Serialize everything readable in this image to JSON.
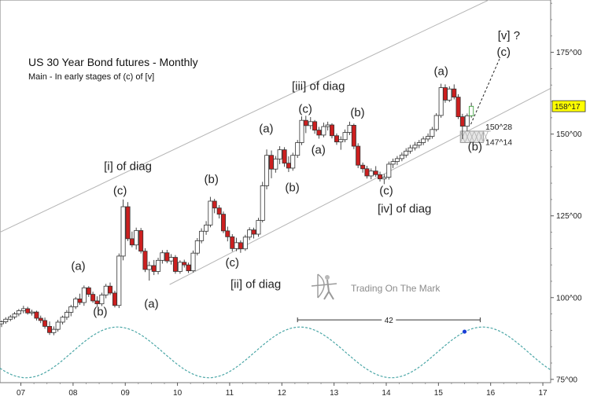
{
  "chart_data": {
    "type": "candlestick",
    "title": "US 30 Year Bond futures - Monthly",
    "subtitle": "Main - In early stages of (c) of [v]",
    "watermark": "Trading On The Mark",
    "x_axis": {
      "ticks": [
        "07",
        "08",
        "09",
        "10",
        "11",
        "12",
        "13",
        "14",
        "15",
        "16",
        "17"
      ],
      "range": [
        2006.6,
        2017.15
      ]
    },
    "y_axis": {
      "scale": "price",
      "ticks": [
        {
          "label": "75^00",
          "value": 75
        },
        {
          "label": "100^00",
          "value": 100
        },
        {
          "label": "125^00",
          "value": 125
        },
        {
          "label": "150^00",
          "value": 150
        },
        {
          "label": "175^00",
          "value": 175
        }
      ],
      "range": [
        74,
        191
      ]
    },
    "last_price": {
      "label": "158^17",
      "value": 158.53
    },
    "support_levels": [
      {
        "label": "150^28",
        "value": 150.9
      },
      {
        "label": "147^14",
        "value": 147.4
      }
    ],
    "channel_lines": [
      {
        "x1": 2006.6,
        "y1": 120,
        "x2": 2017.15,
        "y2": 200
      },
      {
        "x1": 2009.85,
        "y1": 104,
        "x2": 2017.15,
        "y2": 164
      }
    ],
    "projection": {
      "from": {
        "x": 2015.62,
        "y": 153
      },
      "to": {
        "x": 2016.17,
        "y": 173
      }
    },
    "cycle": {
      "period_label": "42",
      "span": [
        2012.3,
        2015.8
      ],
      "peak_marker": {
        "x": 2015.5,
        "y": 89.6
      },
      "min": 75.5,
      "max": 91,
      "phase_peak": 2008.85,
      "period_years": 3.5
    },
    "annotations": [
      {
        "text": "[i] of diag",
        "x": 2009.05,
        "y": 139
      },
      {
        "text": "(c)",
        "x": 2008.9,
        "y": 131.5
      },
      {
        "text": "(a)",
        "x": 2008.1,
        "y": 108.5
      },
      {
        "text": "(b)",
        "x": 2008.52,
        "y": 94.5
      },
      {
        "text": "(a)",
        "x": 2009.5,
        "y": 97
      },
      {
        "text": "(b)",
        "x": 2010.65,
        "y": 135
      },
      {
        "text": "(c)",
        "x": 2011.05,
        "y": 109.5
      },
      {
        "text": "[ii] of diag",
        "x": 2011.5,
        "y": 103
      },
      {
        "text": "(a)",
        "x": 2011.7,
        "y": 150.5
      },
      {
        "text": "(b)",
        "x": 2012.2,
        "y": 132.5
      },
      {
        "text": "(c)",
        "x": 2012.45,
        "y": 156.5
      },
      {
        "text": "[iii] of diag",
        "x": 2012.7,
        "y": 163.5
      },
      {
        "text": "(a)",
        "x": 2012.7,
        "y": 144
      },
      {
        "text": "(b)",
        "x": 2013.45,
        "y": 155.5
      },
      {
        "text": "(c)",
        "x": 2014,
        "y": 131.5
      },
      {
        "text": "[iv] of diag",
        "x": 2014.35,
        "y": 126
      },
      {
        "text": "(a)",
        "x": 2015.05,
        "y": 168
      },
      {
        "text": "(b)",
        "x": 2015.7,
        "y": 145
      },
      {
        "text": "[v] ?",
        "x": 2016.35,
        "y": 179
      },
      {
        "text": "(c)",
        "x": 2016.25,
        "y": 174
      }
    ],
    "candles": [
      [
        2006.63,
        92,
        93,
        91,
        92.6
      ],
      [
        2006.71,
        92.6,
        94,
        92,
        93.4
      ],
      [
        2006.8,
        93.4,
        94.7,
        92.8,
        94.1
      ],
      [
        2006.88,
        94.1,
        95.6,
        93.4,
        95
      ],
      [
        2006.96,
        95,
        96.5,
        94.3,
        96
      ],
      [
        2007.05,
        96,
        97.5,
        95.2,
        96.6
      ],
      [
        2007.13,
        96.6,
        97.2,
        94.8,
        95.3
      ],
      [
        2007.21,
        95.3,
        96.3,
        94.5,
        95.6
      ],
      [
        2007.3,
        95.6,
        96,
        93,
        93.7
      ],
      [
        2007.38,
        93.7,
        94.5,
        92.2,
        93
      ],
      [
        2007.46,
        93,
        93.9,
        90.5,
        91.2
      ],
      [
        2007.55,
        91.2,
        92.7,
        88.6,
        89.3
      ],
      [
        2007.63,
        89.3,
        91.2,
        88.5,
        90.3
      ],
      [
        2007.71,
        90.3,
        93.2,
        89.6,
        92.5
      ],
      [
        2007.8,
        92.5,
        94.5,
        91.8,
        94
      ],
      [
        2007.88,
        94,
        96.2,
        93.2,
        95.5
      ],
      [
        2007.96,
        95.5,
        97.8,
        94.3,
        97.2
      ],
      [
        2008.05,
        97.2,
        100.2,
        96.5,
        99.6
      ],
      [
        2008.13,
        99.6,
        101.2,
        97.8,
        98.5
      ],
      [
        2008.21,
        98.5,
        103.7,
        97.5,
        103
      ],
      [
        2008.3,
        103,
        103.5,
        100.2,
        101
      ],
      [
        2008.38,
        101,
        101.8,
        98.4,
        99
      ],
      [
        2008.46,
        99,
        100.4,
        97.2,
        98.1
      ],
      [
        2008.55,
        98.1,
        101.5,
        97.4,
        100.8
      ],
      [
        2008.63,
        100.8,
        104.2,
        99.8,
        103.5
      ],
      [
        2008.71,
        103.5,
        104.6,
        100.8,
        101.4
      ],
      [
        2008.8,
        101.4,
        102.1,
        97,
        97.6
      ],
      [
        2008.88,
        97.6,
        113.5,
        96.8,
        112.7
      ],
      [
        2008.96,
        112.7,
        130,
        111.4,
        127.8
      ],
      [
        2009.05,
        127.8,
        129.2,
        117.3,
        118
      ],
      [
        2009.13,
        118,
        120.2,
        115.4,
        116.1
      ],
      [
        2009.21,
        116.1,
        121.4,
        114.7,
        120.5
      ],
      [
        2009.3,
        120.5,
        121.3,
        113.5,
        114.2
      ],
      [
        2009.38,
        114.2,
        115.1,
        107.8,
        108.6
      ],
      [
        2009.46,
        108.6,
        111,
        105.2,
        109.8
      ],
      [
        2009.55,
        109.8,
        111.5,
        106.9,
        108
      ],
      [
        2009.63,
        108,
        112.2,
        107.1,
        111.4
      ],
      [
        2009.71,
        111.4,
        114.5,
        110.4,
        113.7
      ],
      [
        2009.8,
        113.7,
        114.6,
        110.5,
        111.2
      ],
      [
        2009.88,
        111.2,
        113.3,
        110.1,
        112.3
      ],
      [
        2009.96,
        112.3,
        113,
        107.3,
        108
      ],
      [
        2010.05,
        108,
        111.4,
        107.3,
        110.8
      ],
      [
        2010.13,
        110.8,
        111.6,
        109.2,
        110
      ],
      [
        2010.21,
        110,
        110.7,
        107.5,
        108.2
      ],
      [
        2010.3,
        108.2,
        114.4,
        107.7,
        113.6
      ],
      [
        2010.38,
        113.6,
        118.2,
        112.9,
        117.4
      ],
      [
        2010.46,
        117.4,
        121.2,
        116.6,
        120.3
      ],
      [
        2010.55,
        120.3,
        123.4,
        119.2,
        122.2
      ],
      [
        2010.63,
        122.2,
        130.8,
        121.5,
        129.5
      ],
      [
        2010.71,
        129.5,
        130.2,
        125.8,
        127.4
      ],
      [
        2010.8,
        127.4,
        128.3,
        124.2,
        125.5
      ],
      [
        2010.88,
        125.5,
        126.3,
        119.7,
        120.4
      ],
      [
        2010.96,
        120.4,
        121.7,
        117.2,
        118.6
      ],
      [
        2011.05,
        118.6,
        119.4,
        114.1,
        115
      ],
      [
        2011.13,
        115,
        118.3,
        114.2,
        116.8
      ],
      [
        2011.21,
        116.8,
        117.5,
        113.7,
        114.9
      ],
      [
        2011.3,
        114.9,
        119.2,
        114.3,
        118.5
      ],
      [
        2011.38,
        118.5,
        121.5,
        117.6,
        120.7
      ],
      [
        2011.46,
        120.7,
        121.4,
        118.1,
        119.4
      ],
      [
        2011.55,
        119.4,
        124.4,
        118.6,
        123.6
      ],
      [
        2011.63,
        123.6,
        135.4,
        123,
        134.2
      ],
      [
        2011.71,
        134.2,
        145.3,
        133.1,
        143.5
      ],
      [
        2011.8,
        143.5,
        145,
        136.5,
        139.3
      ],
      [
        2011.88,
        139.3,
        143.3,
        138.2,
        142.4
      ],
      [
        2011.96,
        142.4,
        146.3,
        140.8,
        145.2
      ],
      [
        2012.05,
        145.2,
        146,
        140,
        141.1
      ],
      [
        2012.13,
        141.1,
        143.2,
        138.4,
        139.6
      ],
      [
        2012.21,
        139.6,
        144.3,
        138.8,
        143.5
      ],
      [
        2012.3,
        143.5,
        148.2,
        142.7,
        147.4
      ],
      [
        2012.38,
        147.4,
        155.4,
        146.6,
        154.2
      ],
      [
        2012.46,
        154.2,
        155.6,
        150.3,
        152.6
      ],
      [
        2012.55,
        152.6,
        155.2,
        151.5,
        153.8
      ],
      [
        2012.63,
        153.8,
        154.3,
        150.1,
        151.2
      ],
      [
        2012.71,
        151.2,
        152.2,
        148.6,
        149.7
      ],
      [
        2012.8,
        149.7,
        153.5,
        149,
        152.3
      ],
      [
        2012.88,
        152.3,
        153.8,
        151.1,
        152.8
      ],
      [
        2012.96,
        152.8,
        153.3,
        148.7,
        149.5
      ],
      [
        2013.05,
        149.5,
        150.2,
        146.7,
        147.6
      ],
      [
        2013.13,
        147.6,
        149.3,
        145.2,
        148.3
      ],
      [
        2013.21,
        148.3,
        151.4,
        147.5,
        150.5
      ],
      [
        2013.3,
        150.5,
        153.8,
        149.7,
        152.7
      ],
      [
        2013.38,
        152.7,
        153.2,
        145.4,
        146.3
      ],
      [
        2013.46,
        146.3,
        147.2,
        139.6,
        140.5
      ],
      [
        2013.55,
        140.5,
        141.3,
        138.2,
        139.4
      ],
      [
        2013.63,
        139.4,
        140.3,
        136.4,
        137.2
      ],
      [
        2013.71,
        137.2,
        139.5,
        136.2,
        138.7
      ],
      [
        2013.8,
        138.7,
        140.2,
        136.9,
        137.6
      ],
      [
        2013.88,
        137.6,
        138.5,
        135.5,
        136.3
      ],
      [
        2013.96,
        136.3,
        137.8,
        134.7,
        136.8
      ],
      [
        2014.05,
        136.8,
        141.6,
        136.1,
        140.8
      ],
      [
        2014.13,
        140.8,
        142.5,
        139.6,
        141.6
      ],
      [
        2014.21,
        141.6,
        143.3,
        140.5,
        142.5
      ],
      [
        2014.3,
        142.5,
        144.4,
        141.7,
        143.6
      ],
      [
        2014.38,
        143.6,
        145.7,
        142.8,
        144.8
      ],
      [
        2014.46,
        144.8,
        146.7,
        144,
        145.8
      ],
      [
        2014.55,
        145.8,
        147.6,
        145,
        146.6
      ],
      [
        2014.63,
        146.6,
        148.2,
        145.7,
        147.4
      ],
      [
        2014.71,
        147.4,
        149.3,
        146.6,
        148.5
      ],
      [
        2014.8,
        148.5,
        150.2,
        147.7,
        149.3
      ],
      [
        2014.88,
        149.3,
        152.2,
        148.6,
        151.4
      ],
      [
        2014.96,
        151.4,
        156.4,
        150.8,
        155.7
      ],
      [
        2015.05,
        155.7,
        165.4,
        155,
        164.2
      ],
      [
        2015.13,
        164.2,
        165.2,
        159.6,
        160.4
      ],
      [
        2015.21,
        160.4,
        164.6,
        159.8,
        163.8
      ],
      [
        2015.3,
        163.8,
        165.2,
        160.6,
        161.3
      ],
      [
        2015.38,
        161.3,
        162.2,
        154.6,
        155.3
      ],
      [
        2015.46,
        155.3,
        156.2,
        148.5,
        152.4
      ],
      [
        2015.55,
        152.4,
        156.3,
        150.9,
        155.6
      ],
      [
        2015.63,
        155.6,
        159.6,
        155,
        158.5
      ]
    ]
  }
}
